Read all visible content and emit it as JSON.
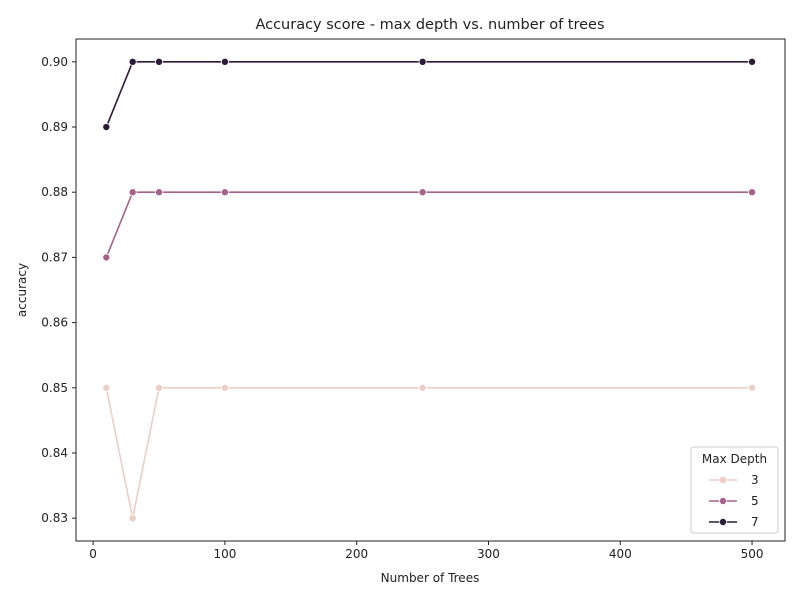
{
  "chart_data": {
    "type": "line",
    "title": "Accuracy score - max depth vs. number of trees",
    "xlabel": "Number of Trees",
    "ylabel": "accuracy",
    "x": [
      10,
      30,
      50,
      100,
      250,
      500
    ],
    "xlim": [
      -13,
      525
    ],
    "ylim": [
      0.8265,
      0.9035
    ],
    "xticks": [
      0,
      100,
      200,
      300,
      400,
      500
    ],
    "xtick_labels": [
      "0",
      "100",
      "200",
      "300",
      "400",
      "500"
    ],
    "yticks": [
      0.83,
      0.84,
      0.85,
      0.86,
      0.87,
      0.88,
      0.89,
      0.9
    ],
    "ytick_labels": [
      "0.83",
      "0.84",
      "0.85",
      "0.86",
      "0.87",
      "0.88",
      "0.89",
      "0.90"
    ],
    "legend": {
      "title": "Max Depth",
      "position": "lower-right"
    },
    "series": [
      {
        "name": "3",
        "color": "#ebcec6",
        "values": [
          0.85,
          0.83,
          0.85,
          0.85,
          0.85,
          0.85
        ]
      },
      {
        "name": "5",
        "color": "#a6628a",
        "values": [
          0.87,
          0.88,
          0.88,
          0.88,
          0.88,
          0.88
        ]
      },
      {
        "name": "7",
        "color": "#2b1b38",
        "values": [
          0.89,
          0.9,
          0.9,
          0.9,
          0.9,
          0.9
        ]
      }
    ],
    "grid": false
  }
}
